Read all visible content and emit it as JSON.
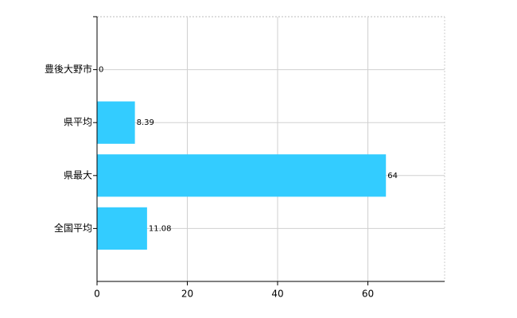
{
  "chart_data": {
    "type": "bar",
    "orientation": "horizontal",
    "categories": [
      "豊後大野市",
      "県平均",
      "県最大",
      "全国平均"
    ],
    "values": [
      0,
      8.39,
      64,
      11.08
    ],
    "color": "#33ccff",
    "xlim": [
      0,
      77
    ],
    "xticks": [
      0,
      20,
      40,
      60
    ],
    "grid": true
  }
}
